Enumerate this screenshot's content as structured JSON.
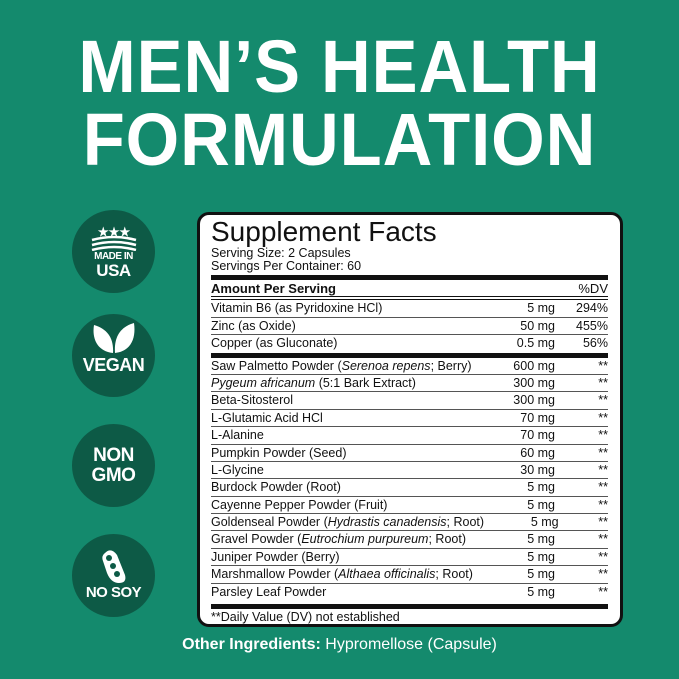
{
  "headline": [
    "MEN’S HEALTH",
    "FORMULATION"
  ],
  "badges": [
    {
      "icon": "flag-stars-icon",
      "lines": [
        "MADE IN",
        "USA"
      ]
    },
    {
      "icon": "leaves-icon",
      "lines": [
        "VEGAN"
      ]
    },
    {
      "icon": "",
      "lines": [
        "NON",
        "GMO"
      ]
    },
    {
      "icon": "soybean-icon",
      "lines": [
        "NO SOY"
      ]
    }
  ],
  "facts": {
    "title": "Supplement Facts",
    "serving_size": "Serving Size: 2 Capsules",
    "servings_per_container": "Servings Per Container: 60",
    "header": {
      "amount": "Amount Per Serving",
      "dv": "%DV"
    },
    "vitamins": [
      {
        "name": [
          {
            "t": "Vitamin B6 (as Pyridoxine HCl)"
          }
        ],
        "amount": "5 mg",
        "dv": "294%"
      },
      {
        "name": [
          {
            "t": "Zinc (as Oxide)"
          }
        ],
        "amount": "50 mg",
        "dv": "455%"
      },
      {
        "name": [
          {
            "t": "Copper (as Gluconate)"
          }
        ],
        "amount": "0.5 mg",
        "dv": "56%"
      }
    ],
    "ingredients": [
      {
        "name": [
          {
            "t": "Saw Palmetto Powder ("
          },
          {
            "t": "Serenoa repens",
            "i": true
          },
          {
            "t": "; Berry)"
          }
        ],
        "amount": "600 mg",
        "dv": "**"
      },
      {
        "name": [
          {
            "t": "Pygeum africanum",
            "i": true
          },
          {
            "t": " (5:1 Bark Extract)"
          }
        ],
        "amount": "300 mg",
        "dv": "**"
      },
      {
        "name": [
          {
            "t": "Beta-Sitosterol"
          }
        ],
        "amount": "300 mg",
        "dv": "**"
      },
      {
        "name": [
          {
            "t": "L-Glutamic Acid HCl"
          }
        ],
        "amount": "70 mg",
        "dv": "**"
      },
      {
        "name": [
          {
            "t": "L-Alanine"
          }
        ],
        "amount": "70 mg",
        "dv": "**"
      },
      {
        "name": [
          {
            "t": "Pumpkin Powder (Seed)"
          }
        ],
        "amount": "60 mg",
        "dv": "**"
      },
      {
        "name": [
          {
            "t": "L-Glycine"
          }
        ],
        "amount": "30 mg",
        "dv": "**"
      },
      {
        "name": [
          {
            "t": "Burdock Powder (Root)"
          }
        ],
        "amount": "5 mg",
        "dv": "**"
      },
      {
        "name": [
          {
            "t": "Cayenne Pepper Powder (Fruit)"
          }
        ],
        "amount": "5 mg",
        "dv": "**"
      },
      {
        "name": [
          {
            "t": "Goldenseal Powder ("
          },
          {
            "t": "Hydrastis canadensis",
            "i": true
          },
          {
            "t": "; Root)"
          }
        ],
        "amount": "5 mg",
        "dv": "**"
      },
      {
        "name": [
          {
            "t": "Gravel Powder ("
          },
          {
            "t": "Eutrochium purpureum",
            "i": true
          },
          {
            "t": "; Root)"
          }
        ],
        "amount": "5 mg",
        "dv": "**"
      },
      {
        "name": [
          {
            "t": "Juniper Powder (Berry)"
          }
        ],
        "amount": "5 mg",
        "dv": "**"
      },
      {
        "name": [
          {
            "t": "Marshmallow Powder ("
          },
          {
            "t": "Althaea officinalis",
            "i": true
          },
          {
            "t": "; Root)"
          }
        ],
        "amount": "5 mg",
        "dv": "**"
      },
      {
        "name": [
          {
            "t": "Parsley Leaf Powder"
          }
        ],
        "amount": "5 mg",
        "dv": "**"
      }
    ],
    "footnote": "**Daily Value (DV) not established"
  },
  "other": {
    "label": "Other Ingredients:",
    "value": " Hypromellose (Capsule)"
  },
  "colors": {
    "background": "#148a6d",
    "badge": "#0d5a46"
  }
}
